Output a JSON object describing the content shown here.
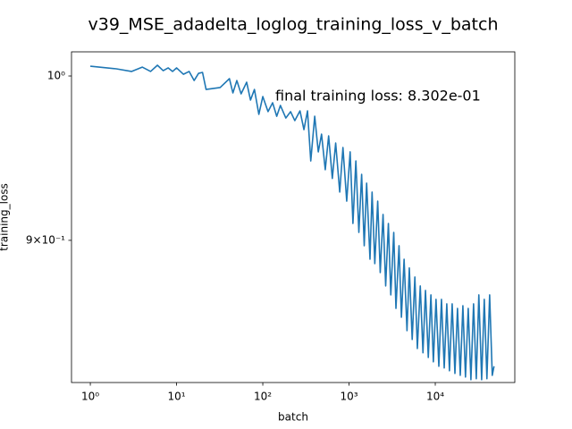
{
  "chart_data": {
    "type": "line",
    "title": "v39_MSE_adadelta_loglog_training_loss_v_batch",
    "xlabel": "batch",
    "ylabel": "training_loss",
    "annotation": "final training loss: 8.302e-01",
    "xscale": "log",
    "yscale": "log",
    "xlim": [
      0.605,
      83600
    ],
    "ylim": [
      0.8216,
      1.0156
    ],
    "xticks": [
      {
        "value": 1,
        "label": "10⁰"
      },
      {
        "value": 10,
        "label": "10¹"
      },
      {
        "value": 100,
        "label": "10²"
      },
      {
        "value": 1000,
        "label": "10³"
      },
      {
        "value": 10000,
        "label": "10⁴"
      }
    ],
    "yticks": [
      {
        "value": 1,
        "label": "10⁰"
      },
      {
        "value": 0.9,
        "label": "9×10⁻¹"
      }
    ],
    "series": [
      {
        "color": "#1f77b4",
        "x": [
          1,
          2,
          3,
          4,
          5,
          6,
          7,
          8,
          9,
          10,
          12,
          14,
          16,
          18,
          20,
          22,
          32,
          41,
          45,
          50,
          56,
          65,
          72,
          80,
          90,
          100,
          115,
          130,
          145,
          160,
          185,
          210,
          235,
          270,
          300,
          330,
          360,
          400,
          440,
          480,
          530,
          580,
          640,
          700,
          780,
          850,
          940,
          1030,
          1110,
          1200,
          1300,
          1400,
          1500,
          1600,
          1750,
          1850,
          1990,
          2150,
          2300,
          2480,
          2660,
          2860,
          3050,
          3300,
          3500,
          3800,
          4050,
          4350,
          4700,
          5000,
          5400,
          5800,
          6200,
          6700,
          7200,
          7700,
          8300,
          8900,
          9500,
          10200,
          11000,
          11800,
          12700,
          13600,
          14600,
          15700,
          16900,
          18100,
          19500,
          20900,
          22400,
          24100,
          25900,
          27800,
          29900,
          32000,
          34500,
          37000,
          39700,
          42700,
          45800,
          48000
        ],
        "values": [
          1.0063,
          1.0046,
          1.0029,
          1.0057,
          1.0029,
          1.0069,
          1.0034,
          1.0052,
          1.0029,
          1.0052,
          1.0011,
          1.0029,
          0.9971,
          1.0017,
          1.0023,
          0.9914,
          0.9926,
          0.9983,
          0.9892,
          0.9971,
          0.9886,
          0.996,
          0.9847,
          0.9914,
          0.9757,
          0.9869,
          0.9774,
          0.983,
          0.9745,
          0.9813,
          0.9734,
          0.9774,
          0.9718,
          0.9779,
          0.9662,
          0.9779,
          0.947,
          0.9745,
          0.9525,
          0.9634,
          0.9417,
          0.9623,
          0.9364,
          0.9579,
          0.9283,
          0.9552,
          0.9229,
          0.9525,
          0.9098,
          0.947,
          0.9046,
          0.9389,
          0.8969,
          0.9336,
          0.8892,
          0.9283,
          0.8867,
          0.9229,
          0.8816,
          0.9151,
          0.8741,
          0.9098,
          0.8691,
          0.9046,
          0.8616,
          0.8969,
          0.8567,
          0.8892,
          0.8494,
          0.8842,
          0.8446,
          0.8791,
          0.8397,
          0.8741,
          0.8374,
          0.8716,
          0.8349,
          0.8691,
          0.8326,
          0.8666,
          0.8302,
          0.8666,
          0.8293,
          0.8641,
          0.8278,
          0.8641,
          0.8264,
          0.8616,
          0.8254,
          0.8631,
          0.8245,
          0.8616,
          0.8231,
          0.8641,
          0.8236,
          0.8691,
          0.8231,
          0.8666,
          0.8236,
          0.8691,
          0.8254,
          0.8302
        ]
      }
    ]
  }
}
